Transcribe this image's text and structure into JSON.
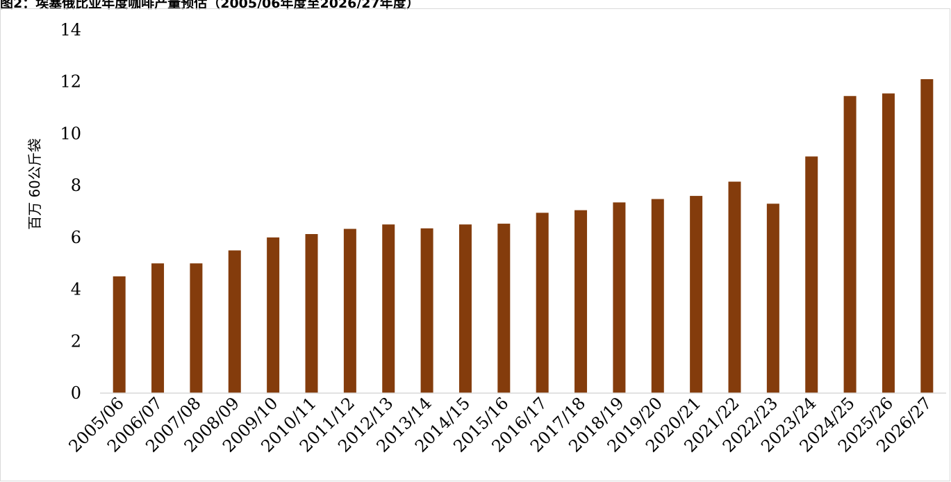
{
  "chart_data": {
    "type": "bar",
    "title": "图2：埃塞俄比亚年度咖啡产量预估（2005/06年度至2026/27年度）",
    "ylabel": "百万 60公斤袋",
    "xlabel": "",
    "ylim": [
      0,
      14
    ],
    "yticks": [
      "0",
      "2",
      "4",
      "6",
      "8",
      "10",
      "12",
      "14"
    ],
    "grid": false,
    "legend": "none",
    "bar_color": "#843C0C",
    "categories": [
      "2005/06",
      "2006/07",
      "2007/08",
      "2008/09",
      "2009/10",
      "2010/11",
      "2011/12",
      "2012/13",
      "2013/14",
      "2014/15",
      "2015/16",
      "2016/17",
      "2017/18",
      "2018/19",
      "2019/20",
      "2020/21",
      "2021/22",
      "2022/23",
      "2023/24",
      "2024/25",
      "2025/26",
      "2026/27"
    ],
    "values": [
      4.5,
      5.0,
      5.0,
      5.5,
      6.0,
      6.13,
      6.33,
      6.5,
      6.35,
      6.5,
      6.53,
      6.95,
      7.05,
      7.35,
      7.48,
      7.6,
      8.15,
      7.3,
      9.12,
      11.45,
      11.55,
      12.1
    ]
  }
}
